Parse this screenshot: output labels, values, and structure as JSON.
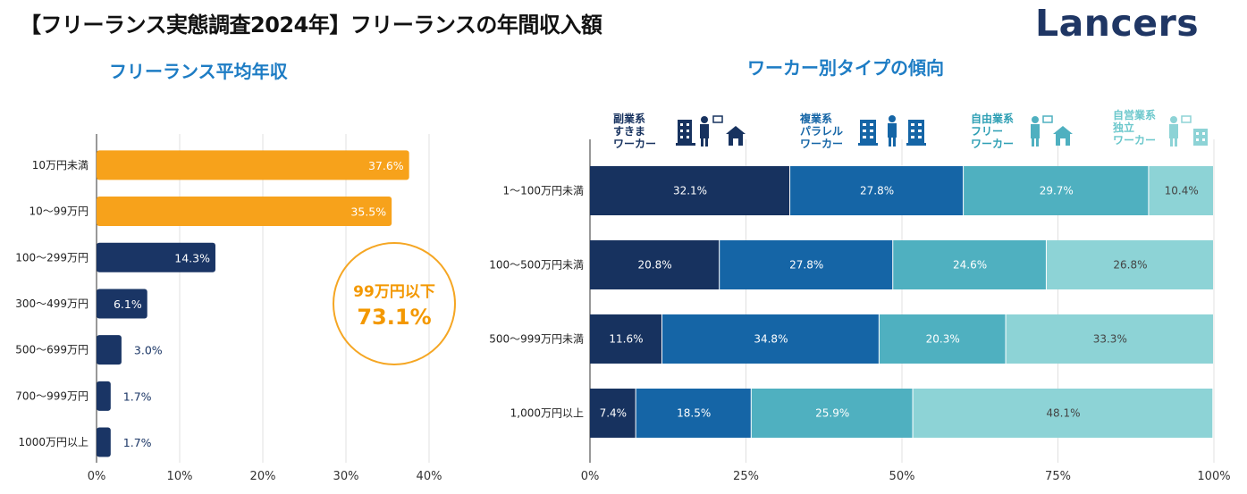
{
  "header": {
    "title": "【フリーランス実態調査2024年】フリーランスの年間収入額",
    "logo": "Lancers"
  },
  "colors": {
    "orange": "#f7a21b",
    "navy": "#1a3565",
    "c1": "#17325f",
    "c2": "#1565a6",
    "c3": "#4fb0c0",
    "c4": "#8dd3d6",
    "title_blue": "#1d7cc4"
  },
  "left": {
    "subtitle": "フリーランス平均年収",
    "callout": {
      "line1": "99万円以下",
      "line2": "73.1%"
    }
  },
  "right": {
    "subtitle": "ワーカー別タイプの傾向",
    "worker_types": [
      {
        "label": "副業系\nすきま\nワーカー",
        "icon": "building-person-house-icon"
      },
      {
        "label": "複業系\nパラレル\nワーカー",
        "icon": "building-person-building-icon"
      },
      {
        "label": "自由業系\nフリー\nワーカー",
        "icon": "person-house-icon"
      },
      {
        "label": "自営業系\n独立\nワーカー",
        "icon": "person-building-icon"
      }
    ]
  },
  "chart_data": [
    {
      "type": "bar",
      "orientation": "horizontal",
      "title": "フリーランス平均年収",
      "categories": [
        "10万円未満",
        "10～99万円",
        "100～299万円",
        "300～499万円",
        "500～699万円",
        "700～999万円",
        "1000万円以上"
      ],
      "values": [
        37.6,
        35.5,
        14.3,
        6.1,
        3.0,
        1.7,
        1.7
      ],
      "labels": [
        "37.6%",
        "35.5%",
        "14.3%",
        "6.1%",
        "3.0%",
        "1.7%",
        "1.7%"
      ],
      "xlim": [
        0,
        40
      ],
      "xticks": [
        "0%",
        "10%",
        "20%",
        "30%",
        "40%"
      ],
      "bar_colors": [
        "orange",
        "orange",
        "navy",
        "navy",
        "navy",
        "navy",
        "navy"
      ]
    },
    {
      "type": "bar",
      "orientation": "horizontal",
      "stacked": true,
      "title": "ワーカー別タイプの傾向",
      "categories": [
        "1～100万円未満",
        "100～500万円未満",
        "500～999万円未満",
        "1,000万円以上"
      ],
      "series": [
        {
          "name": "副業系すきまワーカー",
          "values": [
            32.1,
            20.8,
            11.6,
            7.4
          ],
          "labels": [
            "32.1%",
            "20.8%",
            "11.6%",
            "7.4%"
          ]
        },
        {
          "name": "複業系パラレルワーカー",
          "values": [
            27.8,
            27.8,
            34.8,
            18.5
          ],
          "labels": [
            "27.8%",
            "27.8%",
            "34.8%",
            "18.5%"
          ]
        },
        {
          "name": "自由業系フリーワーカー",
          "values": [
            29.7,
            24.6,
            20.3,
            25.9
          ],
          "labels": [
            "29.7%",
            "24.6%",
            "20.3%",
            "25.9%"
          ]
        },
        {
          "name": "自営業系独立ワーカー",
          "values": [
            10.4,
            26.8,
            33.3,
            48.1
          ],
          "labels": [
            "10.4%",
            "26.8%",
            "33.3%",
            "48.1%"
          ]
        }
      ],
      "xlim": [
        0,
        100
      ],
      "xticks": [
        "0%",
        "25%",
        "50%",
        "75%",
        "100%"
      ]
    }
  ]
}
